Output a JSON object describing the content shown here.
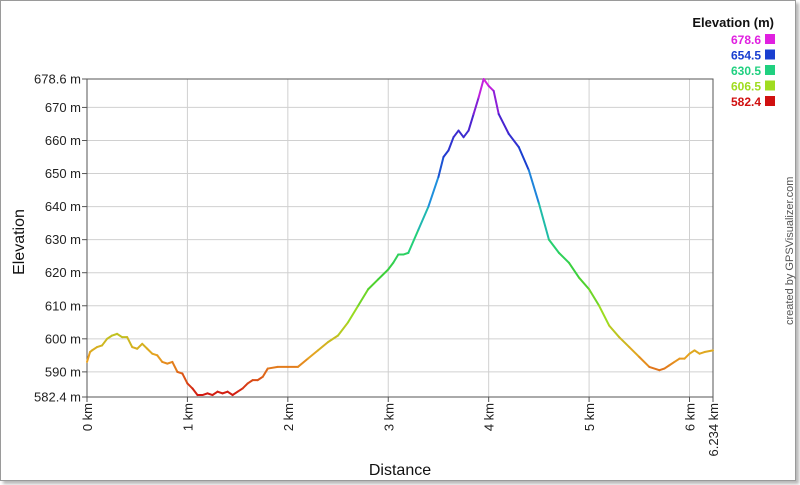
{
  "chart_data": {
    "type": "line",
    "xlabel": "Distance",
    "ylabel": "Elevation",
    "xlim": [
      0,
      6.234
    ],
    "ylim": [
      582.4,
      678.6
    ],
    "x_ticks": [
      {
        "value": 0,
        "label": "0 km"
      },
      {
        "value": 1,
        "label": "1 km"
      },
      {
        "value": 2,
        "label": "2 km"
      },
      {
        "value": 3,
        "label": "3 km"
      },
      {
        "value": 4,
        "label": "4 km"
      },
      {
        "value": 5,
        "label": "5 km"
      },
      {
        "value": 6,
        "label": "6 km"
      },
      {
        "value": 6.234,
        "label": "6.234 km"
      }
    ],
    "y_ticks": [
      {
        "value": 582.4,
        "label": "582.4 m"
      },
      {
        "value": 590,
        "label": "590 m"
      },
      {
        "value": 600,
        "label": "600 m"
      },
      {
        "value": 610,
        "label": "610 m"
      },
      {
        "value": 620,
        "label": "620 m"
      },
      {
        "value": 630,
        "label": "630 m"
      },
      {
        "value": 640,
        "label": "640 m"
      },
      {
        "value": 650,
        "label": "650 m"
      },
      {
        "value": 660,
        "label": "660 m"
      },
      {
        "value": 670,
        "label": "670 m"
      },
      {
        "value": 678.6,
        "label": "678.6 m"
      }
    ],
    "grid": true,
    "legend": {
      "title": "Elevation (m)",
      "placement": "top-right",
      "entries": [
        {
          "label": "678.6",
          "color": "#e020e0"
        },
        {
          "label": "654.5",
          "color": "#1a3fd0"
        },
        {
          "label": "630.5",
          "color": "#20d080"
        },
        {
          "label": "606.5",
          "color": "#a0dc20"
        },
        {
          "label": "582.4",
          "color": "#d01010"
        }
      ]
    },
    "color_scale": [
      {
        "value": 582.4,
        "color": "#d01010"
      },
      {
        "value": 594.5,
        "color": "#e8a020"
      },
      {
        "value": 606.5,
        "color": "#a0dc20"
      },
      {
        "value": 618.5,
        "color": "#40d030"
      },
      {
        "value": 630.5,
        "color": "#20d080"
      },
      {
        "value": 642.5,
        "color": "#20a0e0"
      },
      {
        "value": 654.5,
        "color": "#1a3fd0"
      },
      {
        "value": 666.5,
        "color": "#5020d0"
      },
      {
        "value": 678.6,
        "color": "#e020e0"
      }
    ],
    "series": [
      {
        "x": [
          0,
          0.03,
          0.05,
          0.1,
          0.15,
          0.2,
          0.25,
          0.3,
          0.35,
          0.4,
          0.45,
          0.5,
          0.55,
          0.6,
          0.65,
          0.7,
          0.75,
          0.8,
          0.85,
          0.9,
          0.95,
          1.0,
          1.05,
          1.1,
          1.15,
          1.2,
          1.25,
          1.3,
          1.35,
          1.4,
          1.45,
          1.5,
          1.55,
          1.6,
          1.65,
          1.7,
          1.75,
          1.8,
          1.9,
          2.0,
          2.1,
          2.2,
          2.3,
          2.4,
          2.5,
          2.6,
          2.7,
          2.8,
          2.9,
          3.0,
          3.05,
          3.1,
          3.15,
          3.2,
          3.3,
          3.4,
          3.5,
          3.55,
          3.6,
          3.65,
          3.7,
          3.75,
          3.8,
          3.85,
          3.9,
          3.95,
          4.0,
          4.05,
          4.1,
          4.2,
          4.3,
          4.4,
          4.5,
          4.6,
          4.7,
          4.8,
          4.9,
          5.0,
          5.1,
          5.2,
          5.3,
          5.4,
          5.5,
          5.6,
          5.7,
          5.75,
          5.8,
          5.85,
          5.9,
          5.95,
          6.0,
          6.05,
          6.1,
          6.15,
          6.234
        ],
        "y": [
          593,
          596,
          596.5,
          597.5,
          598,
          600,
          601,
          601.5,
          600.5,
          600.5,
          597.5,
          597,
          598.5,
          597,
          595.5,
          595,
          593,
          592.5,
          593,
          590,
          589.5,
          586.5,
          585,
          583,
          583,
          583.5,
          583,
          584,
          583.5,
          584,
          583,
          584,
          585,
          586.5,
          587.5,
          587.5,
          588.5,
          591,
          591.5,
          591.5,
          591.5,
          594,
          596.5,
          599,
          601,
          605,
          610,
          615,
          618,
          621,
          623,
          625.5,
          625.5,
          626,
          633,
          640,
          649,
          655,
          657,
          661,
          663,
          661,
          663,
          668,
          673,
          678.6,
          676.5,
          675,
          668,
          662,
          658,
          651,
          641,
          630,
          626,
          623,
          618.5,
          615,
          610,
          604,
          600.5,
          597.5,
          594.5,
          591.5,
          590.5,
          591,
          592,
          593,
          594,
          594,
          595.5,
          596.5,
          595.5,
          596,
          596.5
        ]
      }
    ]
  },
  "credit": "created by GPSVisualizer.com"
}
